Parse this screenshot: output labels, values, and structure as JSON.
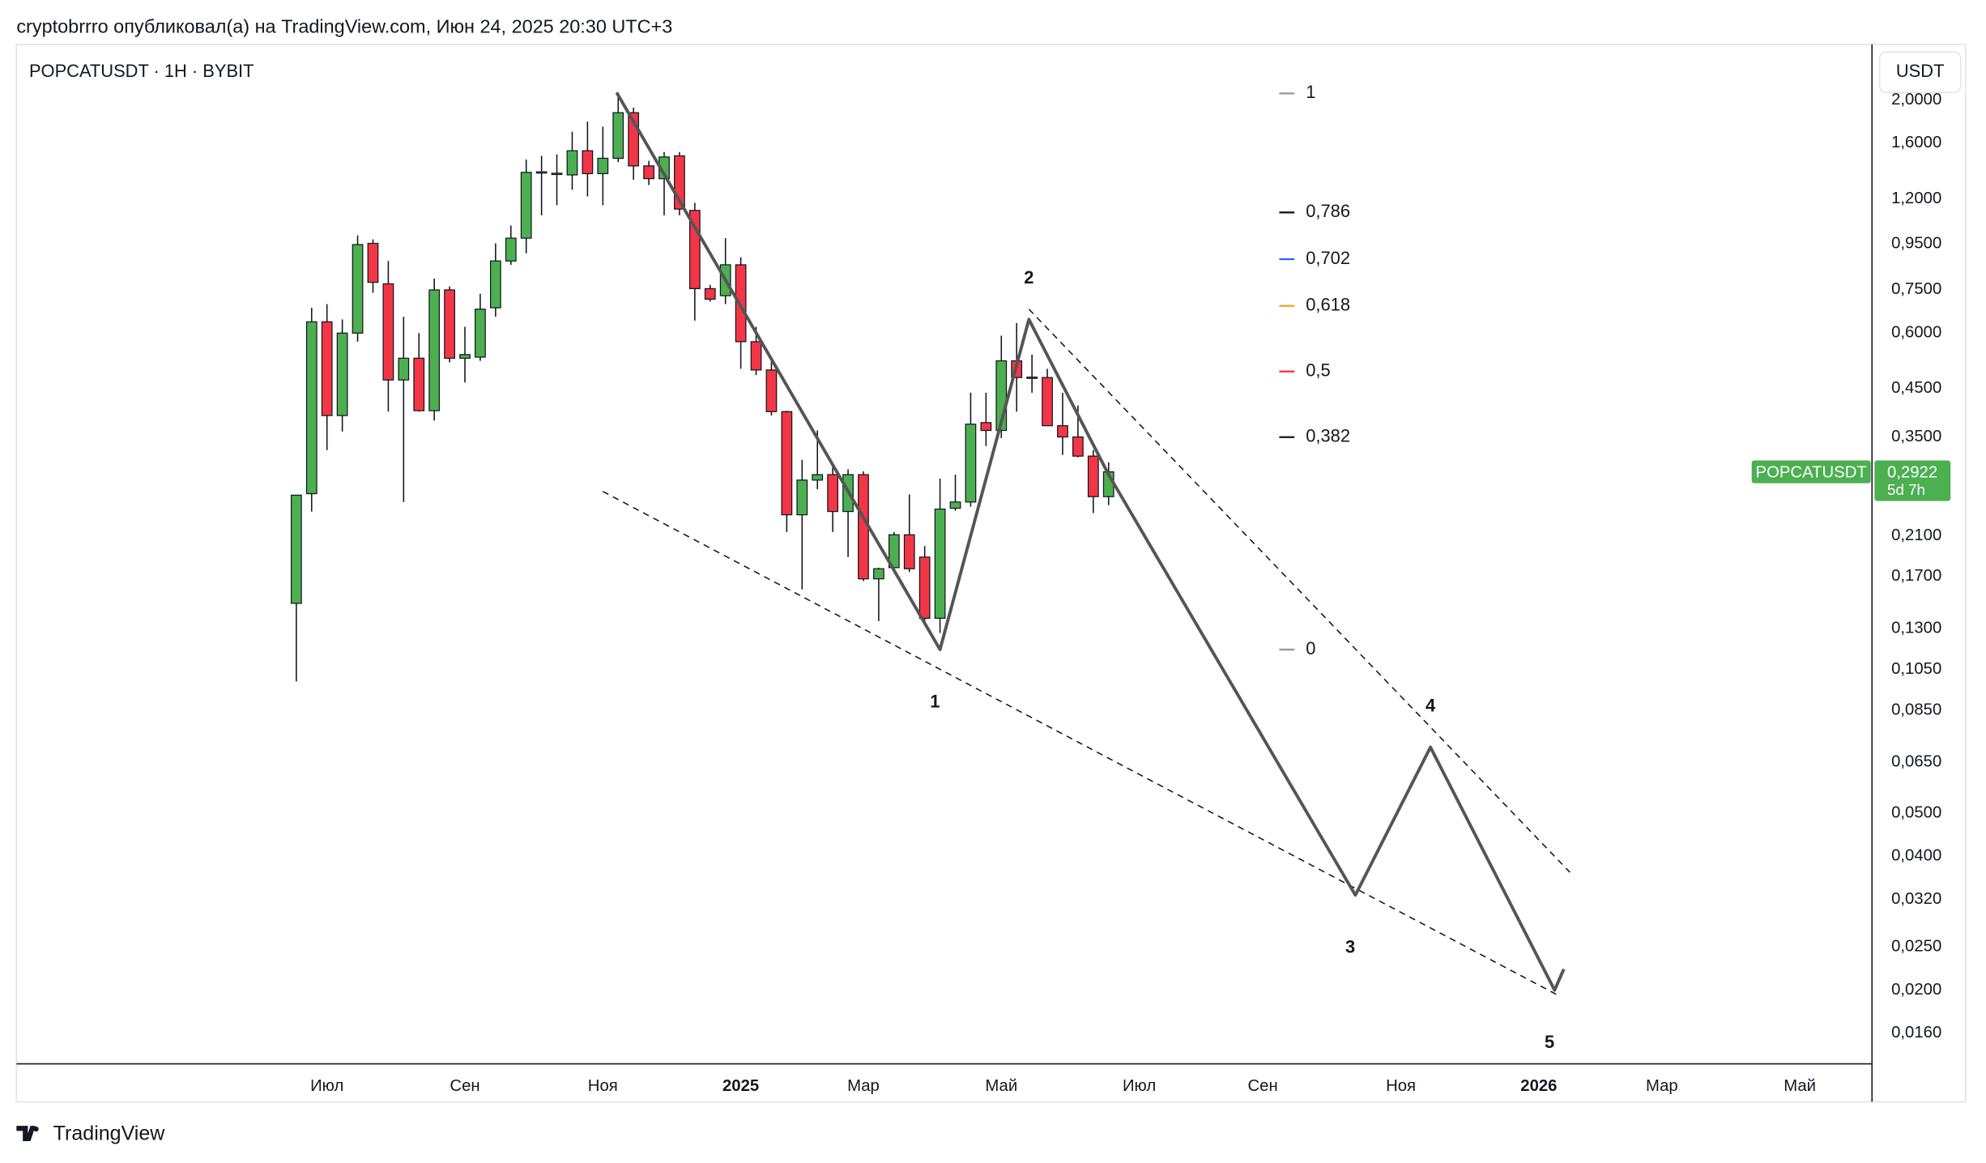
{
  "header": "cryptobrrro опубликовал(а) на TradingView.com, Июн 24, 2025 20:30 UTC+3",
  "footer": "TradingView",
  "chart_data": {
    "type": "candlestick",
    "title": "POPCATUSDT · 1H · BYBIT",
    "y_unit": "USDT",
    "log_scale": true,
    "up_color": "#4caf50",
    "down_color": "#f23645",
    "xlim": [
      -18.26,
      102.81
    ],
    "ylim": [
      0.01366,
      2.669
    ],
    "xticks": [
      {
        "value": 2,
        "label": "Июл"
      },
      {
        "value": 11,
        "label": "Сен"
      },
      {
        "value": 20,
        "label": "Ноя"
      },
      {
        "value": 29,
        "label": "2025"
      },
      {
        "value": 37,
        "label": "Мар"
      },
      {
        "value": 46,
        "label": "Май"
      },
      {
        "value": 55,
        "label": "Июл"
      },
      {
        "value": 63.06,
        "label": "Сен"
      },
      {
        "value": 72.07,
        "label": "Ноя"
      },
      {
        "value": 81.07,
        "label": "2026"
      },
      {
        "value": 89.1,
        "label": "Мар"
      },
      {
        "value": 98.1,
        "label": "Май"
      }
    ],
    "yticks": [
      {
        "value": 2,
        "label": "2,0000"
      },
      {
        "value": 1.6,
        "label": "1,6000"
      },
      {
        "value": 1.2,
        "label": "1,2000"
      },
      {
        "value": 0.95,
        "label": "0,9500"
      },
      {
        "value": 0.75,
        "label": "0,7500"
      },
      {
        "value": 0.6,
        "label": "0,6000"
      },
      {
        "value": 0.45,
        "label": "0,4500"
      },
      {
        "value": 0.35,
        "label": "0,3500"
      },
      {
        "value": 0.21,
        "label": "0,2100"
      },
      {
        "value": 0.17,
        "label": "0,1700"
      },
      {
        "value": 0.13,
        "label": "0,1300"
      },
      {
        "value": 0.105,
        "label": "0,1050"
      },
      {
        "value": 0.085,
        "label": "0,0850"
      },
      {
        "value": 0.065,
        "label": "0,0650"
      },
      {
        "value": 0.05,
        "label": "0,0500"
      },
      {
        "value": 0.04,
        "label": "0,0400"
      },
      {
        "value": 0.032,
        "label": "0,0320"
      },
      {
        "value": 0.025,
        "label": "0,0250"
      },
      {
        "value": 0.02,
        "label": "0,0200"
      },
      {
        "value": 0.016,
        "label": "0,0160"
      }
    ],
    "open": [
      0.148,
      0.261,
      0.635,
      0.391,
      0.599,
      0.953,
      0.773,
      0.47,
      0.526,
      0.401,
      0.749,
      0.526,
      0.529,
      0.683,
      0.87,
      0.979,
      1.376,
      1.367,
      1.358,
      1.539,
      1.367,
      1.48,
      1.874,
      1.423,
      1.332,
      1.499,
      1.13,
      0.754,
      0.727,
      0.853,
      0.573,
      0.495,
      0.399,
      0.234,
      0.28,
      0.288,
      0.238,
      0.288,
      0.168,
      0.178,
      0.211,
      0.188,
      0.137,
      0.242,
      0.25,
      0.377,
      0.362,
      0.519,
      0.476,
      0.476,
      0.371,
      0.35,
      0.317,
      0.257
    ],
    "high": [
      0.259,
      0.683,
      0.696,
      0.643,
      0.993,
      0.973,
      0.87,
      0.652,
      0.599,
      0.794,
      0.763,
      0.619,
      0.734,
      0.953,
      1.045,
      1.47,
      1.499,
      1.51,
      1.698,
      1.789,
      1.743,
      2.08,
      1.924,
      1.461,
      1.529,
      1.529,
      1.176,
      0.769,
      0.979,
      0.887,
      0.619,
      0.519,
      0.401,
      0.311,
      0.362,
      0.301,
      0.296,
      0.293,
      0.178,
      0.214,
      0.26,
      0.199,
      0.282,
      0.288,
      0.44,
      0.44,
      0.591,
      0.631,
      0.536,
      0.498,
      0.44,
      0.412,
      0.327,
      0.307
    ],
    "low": [
      0.0988,
      0.238,
      0.327,
      0.36,
      0.573,
      0.738,
      0.399,
      0.25,
      0.399,
      0.381,
      0.515,
      0.464,
      0.519,
      0.652,
      0.853,
      0.905,
      1.102,
      1.161,
      1.257,
      1.215,
      1.161,
      1.451,
      1.324,
      1.289,
      1.102,
      1.102,
      0.639,
      0.705,
      0.696,
      0.498,
      0.482,
      0.391,
      0.214,
      0.159,
      0.267,
      0.214,
      0.188,
      0.166,
      0.135,
      0.173,
      0.174,
      0.135,
      0.127,
      0.239,
      0.244,
      0.334,
      0.348,
      0.399,
      0.44,
      0.371,
      0.319,
      0.315,
      0.236,
      0.246
    ],
    "close": [
      0.259,
      0.635,
      0.391,
      0.599,
      0.947,
      0.779,
      0.47,
      0.526,
      0.401,
      0.749,
      0.526,
      0.536,
      0.678,
      0.87,
      0.979,
      1.376,
      1.38,
      1.37,
      1.539,
      1.367,
      1.48,
      1.874,
      1.423,
      1.332,
      1.49,
      1.138,
      0.754,
      0.714,
      0.853,
      0.573,
      0.495,
      0.399,
      0.234,
      0.28,
      0.288,
      0.238,
      0.288,
      0.168,
      0.177,
      0.211,
      0.177,
      0.137,
      0.241,
      0.25,
      0.374,
      0.362,
      0.519,
      0.476,
      0.477,
      0.371,
      0.35,
      0.317,
      0.257,
      0.2922
    ],
    "last_price": {
      "value": 0.2922,
      "label": "0,2922"
    },
    "symbol": "POPCATUSDT",
    "countdown": "5d 7h",
    "wave": {
      "color": "#555555",
      "x": [
        20.9,
        42.0,
        47.8,
        53.0,
        69.1,
        74.0,
        82.1,
        82.7
      ],
      "values": [
        2.08,
        0.1165,
        0.643,
        0.288,
        0.0327,
        0.0703,
        0.02,
        0.0223
      ],
      "point_labels": [
        null,
        "1",
        "2",
        null,
        "3",
        "4",
        "5",
        null
      ]
    },
    "trendlines": [
      {
        "x": [
          47.8,
          83.1
        ],
        "values": [
          0.678,
          0.0368
        ]
      },
      {
        "x": [
          20,
          82.3
        ],
        "values": [
          0.264,
          0.0195
        ]
      }
    ],
    "fib": {
      "high": 2.07,
      "low": 0.1165,
      "levels": [
        {
          "value": 1,
          "label": "1",
          "color": "#999999"
        },
        {
          "value": 0.786,
          "label": "0,786",
          "color": "#131722"
        },
        {
          "value": 0.702,
          "label": "0,702",
          "color": "#2962ff"
        },
        {
          "value": 0.618,
          "label": "0,618",
          "color": "#f5a623"
        },
        {
          "value": 0.5,
          "label": "0,5",
          "color": "#f23645"
        },
        {
          "value": 0.382,
          "label": "0,382",
          "color": "#131722"
        },
        {
          "value": 0,
          "label": "0",
          "color": "#999999"
        }
      ]
    }
  }
}
